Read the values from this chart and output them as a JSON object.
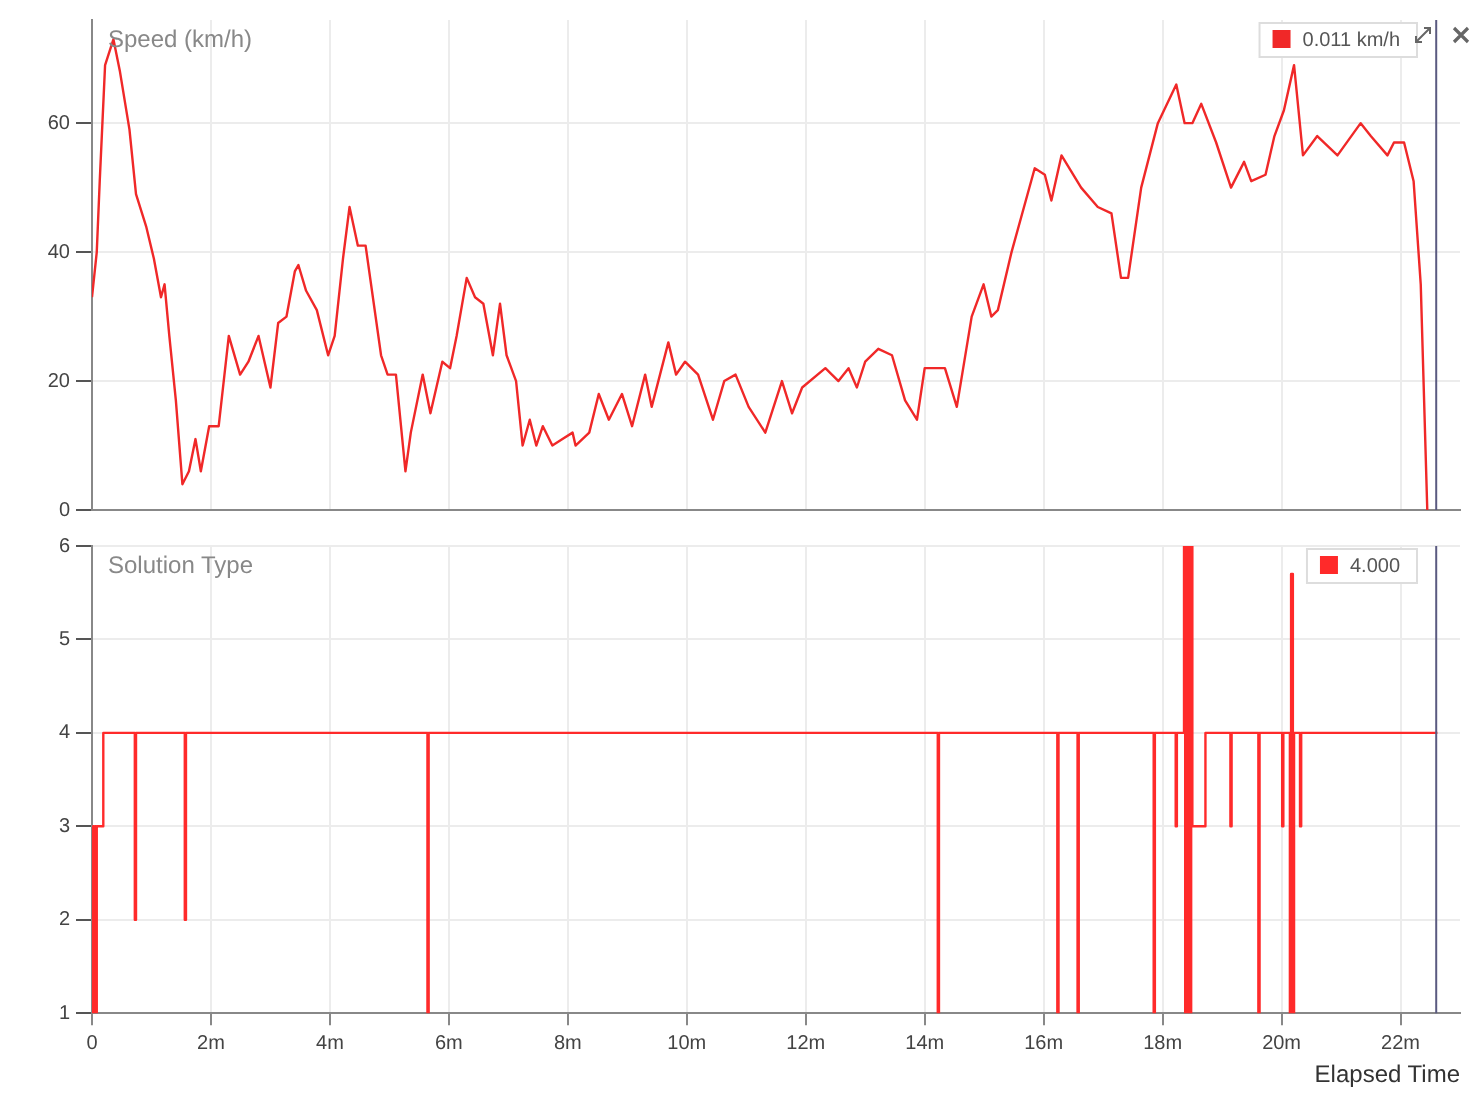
{
  "chart_data": [
    {
      "type": "line",
      "title": "Speed (km/h)",
      "xlim": [
        0,
        23
      ],
      "ylim": [
        0,
        76
      ],
      "yticks": [
        0,
        20,
        40,
        60
      ],
      "xticks": [
        0,
        2,
        4,
        6,
        8,
        10,
        12,
        14,
        16,
        18,
        20,
        22
      ],
      "tick_labels": "y",
      "grid": true,
      "legend": "top right",
      "ref_lines": [
        {
          "axis": "x",
          "value": 22.6,
          "color": "#5a5a80"
        }
      ],
      "series": [
        {
          "name": "0.011 km/h",
          "color": "#f02828",
          "x": [
            0,
            0.08,
            0.13,
            0.22,
            0.36,
            0.47,
            0.63,
            0.74,
            0.91,
            1.04,
            1.16,
            1.22,
            1.3,
            1.41,
            1.52,
            1.63,
            1.74,
            1.83,
            1.97,
            2.13,
            2.3,
            2.49,
            2.63,
            2.8,
            3.0,
            3.13,
            3.27,
            3.41,
            3.47,
            3.6,
            3.78,
            3.97,
            4.08,
            4.22,
            4.33,
            4.47,
            4.6,
            4.86,
            4.97,
            5.11,
            5.27,
            5.36,
            5.56,
            5.69,
            5.89,
            6.02,
            6.13,
            6.3,
            6.44,
            6.58,
            6.74,
            6.86,
            6.97,
            7.13,
            7.24,
            7.36,
            7.47,
            7.58,
            7.74,
            7.91,
            8.08,
            8.13,
            8.36,
            8.52,
            8.69,
            8.91,
            9.08,
            9.3,
            9.41,
            9.69,
            9.82,
            9.97,
            10.19,
            10.44,
            10.63,
            10.82,
            11.04,
            11.32,
            11.6,
            11.77,
            11.94,
            12.33,
            12.55,
            12.72,
            12.86,
            13.0,
            13.22,
            13.45,
            13.67,
            13.87,
            14.0,
            14.34,
            14.54,
            14.79,
            14.99,
            15.12,
            15.23,
            15.46,
            15.85,
            16.02,
            16.13,
            16.3,
            16.63,
            16.91,
            17.14,
            17.3,
            17.42,
            17.64,
            17.92,
            18.23,
            18.37,
            18.5,
            18.65,
            18.9,
            19.15,
            19.37,
            19.49,
            19.73,
            19.88,
            20.04,
            20.21,
            20.36,
            20.6,
            20.94,
            21.33,
            21.5,
            21.78,
            21.89,
            22.06,
            22.22,
            22.34,
            22.45
          ],
          "values": [
            33,
            40,
            51,
            69,
            73,
            68,
            59,
            49,
            44,
            39,
            33,
            35,
            27,
            17,
            4,
            6,
            11,
            6,
            13,
            13,
            27,
            21,
            23,
            27,
            19,
            29,
            30,
            37,
            38,
            34,
            31,
            24,
            27,
            39,
            47,
            41,
            41,
            24,
            21,
            21,
            6,
            12,
            21,
            15,
            23,
            22,
            27,
            36,
            33,
            32,
            24,
            32,
            24,
            20,
            10,
            14,
            10,
            13,
            10,
            11,
            12,
            10,
            12,
            18,
            14,
            18,
            13,
            21,
            16,
            26,
            21,
            23,
            21,
            14,
            20,
            21,
            16,
            12,
            20,
            15,
            19,
            22,
            20,
            22,
            19,
            23,
            25,
            24,
            17,
            14,
            22,
            22,
            16,
            30,
            35,
            30,
            31,
            40,
            53,
            52,
            48,
            55,
            50,
            47,
            46,
            36,
            36,
            50,
            60,
            66,
            60,
            60,
            63,
            57,
            50,
            54,
            51,
            52,
            58,
            62,
            69,
            55,
            58,
            55,
            60,
            58,
            55,
            57,
            57,
            51,
            35,
            0
          ]
        }
      ]
    },
    {
      "type": "step",
      "title": "Solution Type",
      "xlabel": "Elapsed Time",
      "xlim": [
        0,
        23
      ],
      "ylim": [
        1,
        6
      ],
      "yticks": [
        1,
        2,
        3,
        4,
        5,
        6
      ],
      "xticks": [
        0,
        {
          "value": 2,
          "label": "2m"
        },
        {
          "value": 4,
          "label": "4m"
        },
        {
          "value": 6,
          "label": "6m"
        },
        {
          "value": 8,
          "label": "8m"
        },
        {
          "value": 10,
          "label": "10m"
        },
        {
          "value": 12,
          "label": "12m"
        },
        {
          "value": 14,
          "label": "14m"
        },
        {
          "value": 16,
          "label": "16m"
        },
        {
          "value": 18,
          "label": "18m"
        },
        {
          "value": 20,
          "label": "20m"
        },
        {
          "value": 22,
          "label": "22m"
        }
      ],
      "grid": true,
      "legend": "top right",
      "ref_lines": [
        {
          "axis": "x",
          "value": 22.6,
          "color": "#5a5a80"
        }
      ],
      "series": [
        {
          "name": "4.000",
          "color": "#ff2a2a",
          "x": [
            0,
            0.02,
            0.03,
            0.05,
            0.06,
            0.08,
            0.19,
            0.72,
            0.74,
            1.56,
            1.58,
            5.64,
            5.66,
            14.22,
            14.24,
            16.23,
            16.25,
            16.57,
            16.59,
            17.85,
            17.87,
            18.22,
            18.24,
            18.36,
            18.38,
            18.4,
            18.42,
            18.44,
            18.46,
            18.48,
            18.5,
            18.72,
            19.14,
            19.16,
            19.61,
            19.63,
            20.01,
            20.03,
            20.14,
            20.16,
            20.19,
            20.21,
            20.31,
            20.33,
            22.62
          ],
          "values": [
            1,
            3,
            1,
            3,
            1,
            3,
            4,
            2,
            4,
            2,
            4,
            1,
            4,
            1,
            4,
            1,
            4,
            1,
            4,
            1,
            4,
            3,
            4,
            6,
            1,
            6,
            1,
            6,
            1,
            6,
            3,
            4,
            3,
            4,
            1,
            4,
            3,
            4,
            1,
            5.7,
            1,
            4,
            3,
            4,
            4
          ]
        }
      ]
    }
  ]
}
